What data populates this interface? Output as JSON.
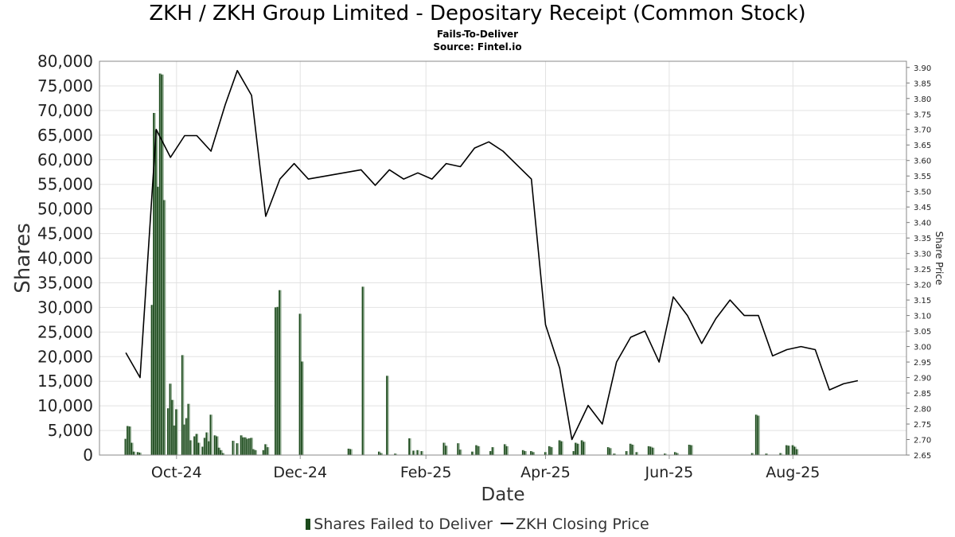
{
  "header": {
    "title": "ZKH / ZKH Group Limited - Depositary Receipt (Common Stock)",
    "subtitle": "Fails-To-Deliver",
    "source": "Source: Fintel.io"
  },
  "legend": {
    "bars_label": "Shares Failed to Deliver",
    "line_label": "ZKH Closing Price"
  },
  "colors": {
    "bar_dark": "#1c4a1c",
    "bar_light": "#8faa8f",
    "line": "#000000",
    "grid": "#e2e2e2"
  },
  "chart_data": {
    "type": "bar+line",
    "xlabel": "Date",
    "ylabel": "Shares",
    "y2label": "Share Price",
    "ylim": [
      0,
      80000
    ],
    "y2lim": [
      2.65,
      3.92
    ],
    "xlim": [
      "2024-08-24",
      "2025-09-26"
    ],
    "x_ticks": [
      {
        "date": "2024-10-01",
        "label": "Oct-24"
      },
      {
        "date": "2024-12-01",
        "label": "Dec-24"
      },
      {
        "date": "2025-02-01",
        "label": "Feb-25"
      },
      {
        "date": "2025-04-01",
        "label": "Apr-25"
      },
      {
        "date": "2025-06-01",
        "label": "Jun-25"
      },
      {
        "date": "2025-08-01",
        "label": "Aug-25"
      }
    ],
    "y_ticks": [
      0,
      5000,
      10000,
      15000,
      20000,
      25000,
      30000,
      35000,
      40000,
      45000,
      50000,
      55000,
      60000,
      65000,
      70000,
      75000,
      80000
    ],
    "y_tick_labels": [
      "0",
      "5,000",
      "10,000",
      "15,000",
      "20,000",
      "25,000",
      "30,000",
      "35,000",
      "40,000",
      "45,000",
      "50,000",
      "55,000",
      "60,000",
      "65,000",
      "70,000",
      "75,000",
      "80,000"
    ],
    "y2_ticks": [
      "2.65",
      "2.70",
      "2.75",
      "2.80",
      "2.85",
      "2.90",
      "2.95",
      "3.00",
      "3.05",
      "3.10",
      "3.15",
      "3.20",
      "3.25",
      "3.30",
      "3.35",
      "3.40",
      "3.45",
      "3.50",
      "3.55",
      "3.60",
      "3.65",
      "3.70",
      "3.75",
      "3.80",
      "3.85",
      "3.90"
    ],
    "series": [
      {
        "name": "Shares Failed to Deliver",
        "kind": "bar",
        "points": [
          [
            "2024-09-06",
            3300
          ],
          [
            "2024-09-07",
            5900
          ],
          [
            "2024-09-08",
            5800
          ],
          [
            "2024-09-09",
            2500
          ],
          [
            "2024-09-10",
            700
          ],
          [
            "2024-09-12",
            600
          ],
          [
            "2024-09-13",
            500
          ],
          [
            "2024-09-19",
            30500
          ],
          [
            "2024-09-20",
            69500
          ],
          [
            "2024-09-21",
            66000
          ],
          [
            "2024-09-22",
            54500
          ],
          [
            "2024-09-23",
            77500
          ],
          [
            "2024-09-24",
            77300
          ],
          [
            "2024-09-25",
            51800
          ],
          [
            "2024-09-27",
            9500
          ],
          [
            "2024-09-28",
            14500
          ],
          [
            "2024-09-29",
            11200
          ],
          [
            "2024-09-30",
            6000
          ],
          [
            "2024-10-01",
            9300
          ],
          [
            "2024-10-04",
            20300
          ],
          [
            "2024-10-05",
            6200
          ],
          [
            "2024-10-06",
            7500
          ],
          [
            "2024-10-07",
            10400
          ],
          [
            "2024-10-08",
            3000
          ],
          [
            "2024-10-10",
            3800
          ],
          [
            "2024-10-11",
            4300
          ],
          [
            "2024-10-12",
            2500
          ],
          [
            "2024-10-14",
            1700
          ],
          [
            "2024-10-15",
            3500
          ],
          [
            "2024-10-16",
            4600
          ],
          [
            "2024-10-17",
            2800
          ],
          [
            "2024-10-18",
            8200
          ],
          [
            "2024-10-20",
            4000
          ],
          [
            "2024-10-21",
            3800
          ],
          [
            "2024-10-22",
            1500
          ],
          [
            "2024-10-23",
            1000
          ],
          [
            "2024-10-24",
            400
          ],
          [
            "2024-10-29",
            2900
          ],
          [
            "2024-10-31",
            2400
          ],
          [
            "2024-11-02",
            4000
          ],
          [
            "2024-11-03",
            3600
          ],
          [
            "2024-11-04",
            3600
          ],
          [
            "2024-11-05",
            3300
          ],
          [
            "2024-11-06",
            3400
          ],
          [
            "2024-11-07",
            3500
          ],
          [
            "2024-11-08",
            1200
          ],
          [
            "2024-11-09",
            1000
          ],
          [
            "2024-11-13",
            1000
          ],
          [
            "2024-11-14",
            2200
          ],
          [
            "2024-11-15",
            1600
          ],
          [
            "2024-11-19",
            30000
          ],
          [
            "2024-11-20",
            30100
          ],
          [
            "2024-11-21",
            33500
          ],
          [
            "2024-12-01",
            28700
          ],
          [
            "2024-12-02",
            19000
          ],
          [
            "2024-12-25",
            1300
          ],
          [
            "2024-12-26",
            1200
          ],
          [
            "2025-01-01",
            34200
          ],
          [
            "2025-01-09",
            700
          ],
          [
            "2025-01-10",
            400
          ],
          [
            "2025-01-13",
            16100
          ],
          [
            "2025-01-17",
            300
          ],
          [
            "2025-01-24",
            3400
          ],
          [
            "2025-01-26",
            900
          ],
          [
            "2025-01-28",
            1000
          ],
          [
            "2025-01-30",
            800
          ],
          [
            "2025-02-10",
            2500
          ],
          [
            "2025-02-11",
            1900
          ],
          [
            "2025-02-17",
            2400
          ],
          [
            "2025-02-18",
            1100
          ],
          [
            "2025-02-24",
            700
          ],
          [
            "2025-02-26",
            2000
          ],
          [
            "2025-02-27",
            1800
          ],
          [
            "2025-03-05",
            800
          ],
          [
            "2025-03-06",
            1600
          ],
          [
            "2025-03-12",
            2200
          ],
          [
            "2025-03-13",
            1800
          ],
          [
            "2025-03-21",
            1000
          ],
          [
            "2025-03-22",
            800
          ],
          [
            "2025-03-25",
            800
          ],
          [
            "2025-03-26",
            600
          ],
          [
            "2025-04-01",
            600
          ],
          [
            "2025-04-03",
            1800
          ],
          [
            "2025-04-04",
            1600
          ],
          [
            "2025-04-08",
            3000
          ],
          [
            "2025-04-09",
            2800
          ],
          [
            "2025-04-15",
            800
          ],
          [
            "2025-04-16",
            2500
          ],
          [
            "2025-04-17",
            2300
          ],
          [
            "2025-04-19",
            3000
          ],
          [
            "2025-04-20",
            2700
          ],
          [
            "2025-05-02",
            1600
          ],
          [
            "2025-05-03",
            1400
          ],
          [
            "2025-05-05",
            300
          ],
          [
            "2025-05-11",
            800
          ],
          [
            "2025-05-13",
            2300
          ],
          [
            "2025-05-14",
            2100
          ],
          [
            "2025-05-16",
            600
          ],
          [
            "2025-05-22",
            1800
          ],
          [
            "2025-05-23",
            1700
          ],
          [
            "2025-05-24",
            1500
          ],
          [
            "2025-05-30",
            300
          ],
          [
            "2025-06-04",
            600
          ],
          [
            "2025-06-05",
            400
          ],
          [
            "2025-06-11",
            2100
          ],
          [
            "2025-06-12",
            2000
          ],
          [
            "2025-07-12",
            400
          ],
          [
            "2025-07-14",
            8200
          ],
          [
            "2025-07-15",
            8000
          ],
          [
            "2025-07-19",
            300
          ],
          [
            "2025-07-26",
            400
          ],
          [
            "2025-07-29",
            2000
          ],
          [
            "2025-07-30",
            1900
          ],
          [
            "2025-08-01",
            2000
          ],
          [
            "2025-08-02",
            1700
          ],
          [
            "2025-08-03",
            1200
          ]
        ]
      },
      {
        "name": "ZKH Closing Price",
        "kind": "line",
        "points": [
          [
            "2024-09-06",
            2.98
          ],
          [
            "2024-09-13",
            2.9
          ],
          [
            "2024-09-21",
            3.7
          ],
          [
            "2024-09-28",
            3.61
          ],
          [
            "2024-10-05",
            3.68
          ],
          [
            "2024-10-11",
            3.68
          ],
          [
            "2024-10-18",
            3.63
          ],
          [
            "2024-10-25",
            3.78
          ],
          [
            "2024-10-31",
            3.89
          ],
          [
            "2024-11-07",
            3.81
          ],
          [
            "2024-11-14",
            3.42
          ],
          [
            "2024-11-21",
            3.54
          ],
          [
            "2024-11-28",
            3.59
          ],
          [
            "2024-12-05",
            3.54
          ],
          [
            "2024-12-31",
            3.57
          ],
          [
            "2025-01-07",
            3.52
          ],
          [
            "2025-01-14",
            3.57
          ],
          [
            "2025-01-21",
            3.54
          ],
          [
            "2025-01-28",
            3.56
          ],
          [
            "2025-02-04",
            3.54
          ],
          [
            "2025-02-11",
            3.59
          ],
          [
            "2025-02-18",
            3.58
          ],
          [
            "2025-02-25",
            3.64
          ],
          [
            "2025-03-04",
            3.66
          ],
          [
            "2025-03-11",
            3.63
          ],
          [
            "2025-03-25",
            3.54
          ],
          [
            "2025-04-01",
            3.07
          ],
          [
            "2025-04-08",
            2.93
          ],
          [
            "2025-04-14",
            2.7
          ],
          [
            "2025-04-22",
            2.81
          ],
          [
            "2025-04-29",
            2.75
          ],
          [
            "2025-05-06",
            2.95
          ],
          [
            "2025-05-13",
            3.03
          ],
          [
            "2025-05-20",
            3.05
          ],
          [
            "2025-05-27",
            2.95
          ],
          [
            "2025-06-03",
            3.16
          ],
          [
            "2025-06-10",
            3.1
          ],
          [
            "2025-06-17",
            3.01
          ],
          [
            "2025-06-24",
            3.09
          ],
          [
            "2025-07-01",
            3.15
          ],
          [
            "2025-07-08",
            3.1
          ],
          [
            "2025-07-15",
            3.1
          ],
          [
            "2025-07-22",
            2.97
          ],
          [
            "2025-07-29",
            2.99
          ],
          [
            "2025-08-05",
            3.0
          ],
          [
            "2025-08-12",
            2.99
          ],
          [
            "2025-08-19",
            2.86
          ],
          [
            "2025-08-26",
            2.88
          ],
          [
            "2025-09-02",
            2.89
          ]
        ]
      }
    ]
  }
}
